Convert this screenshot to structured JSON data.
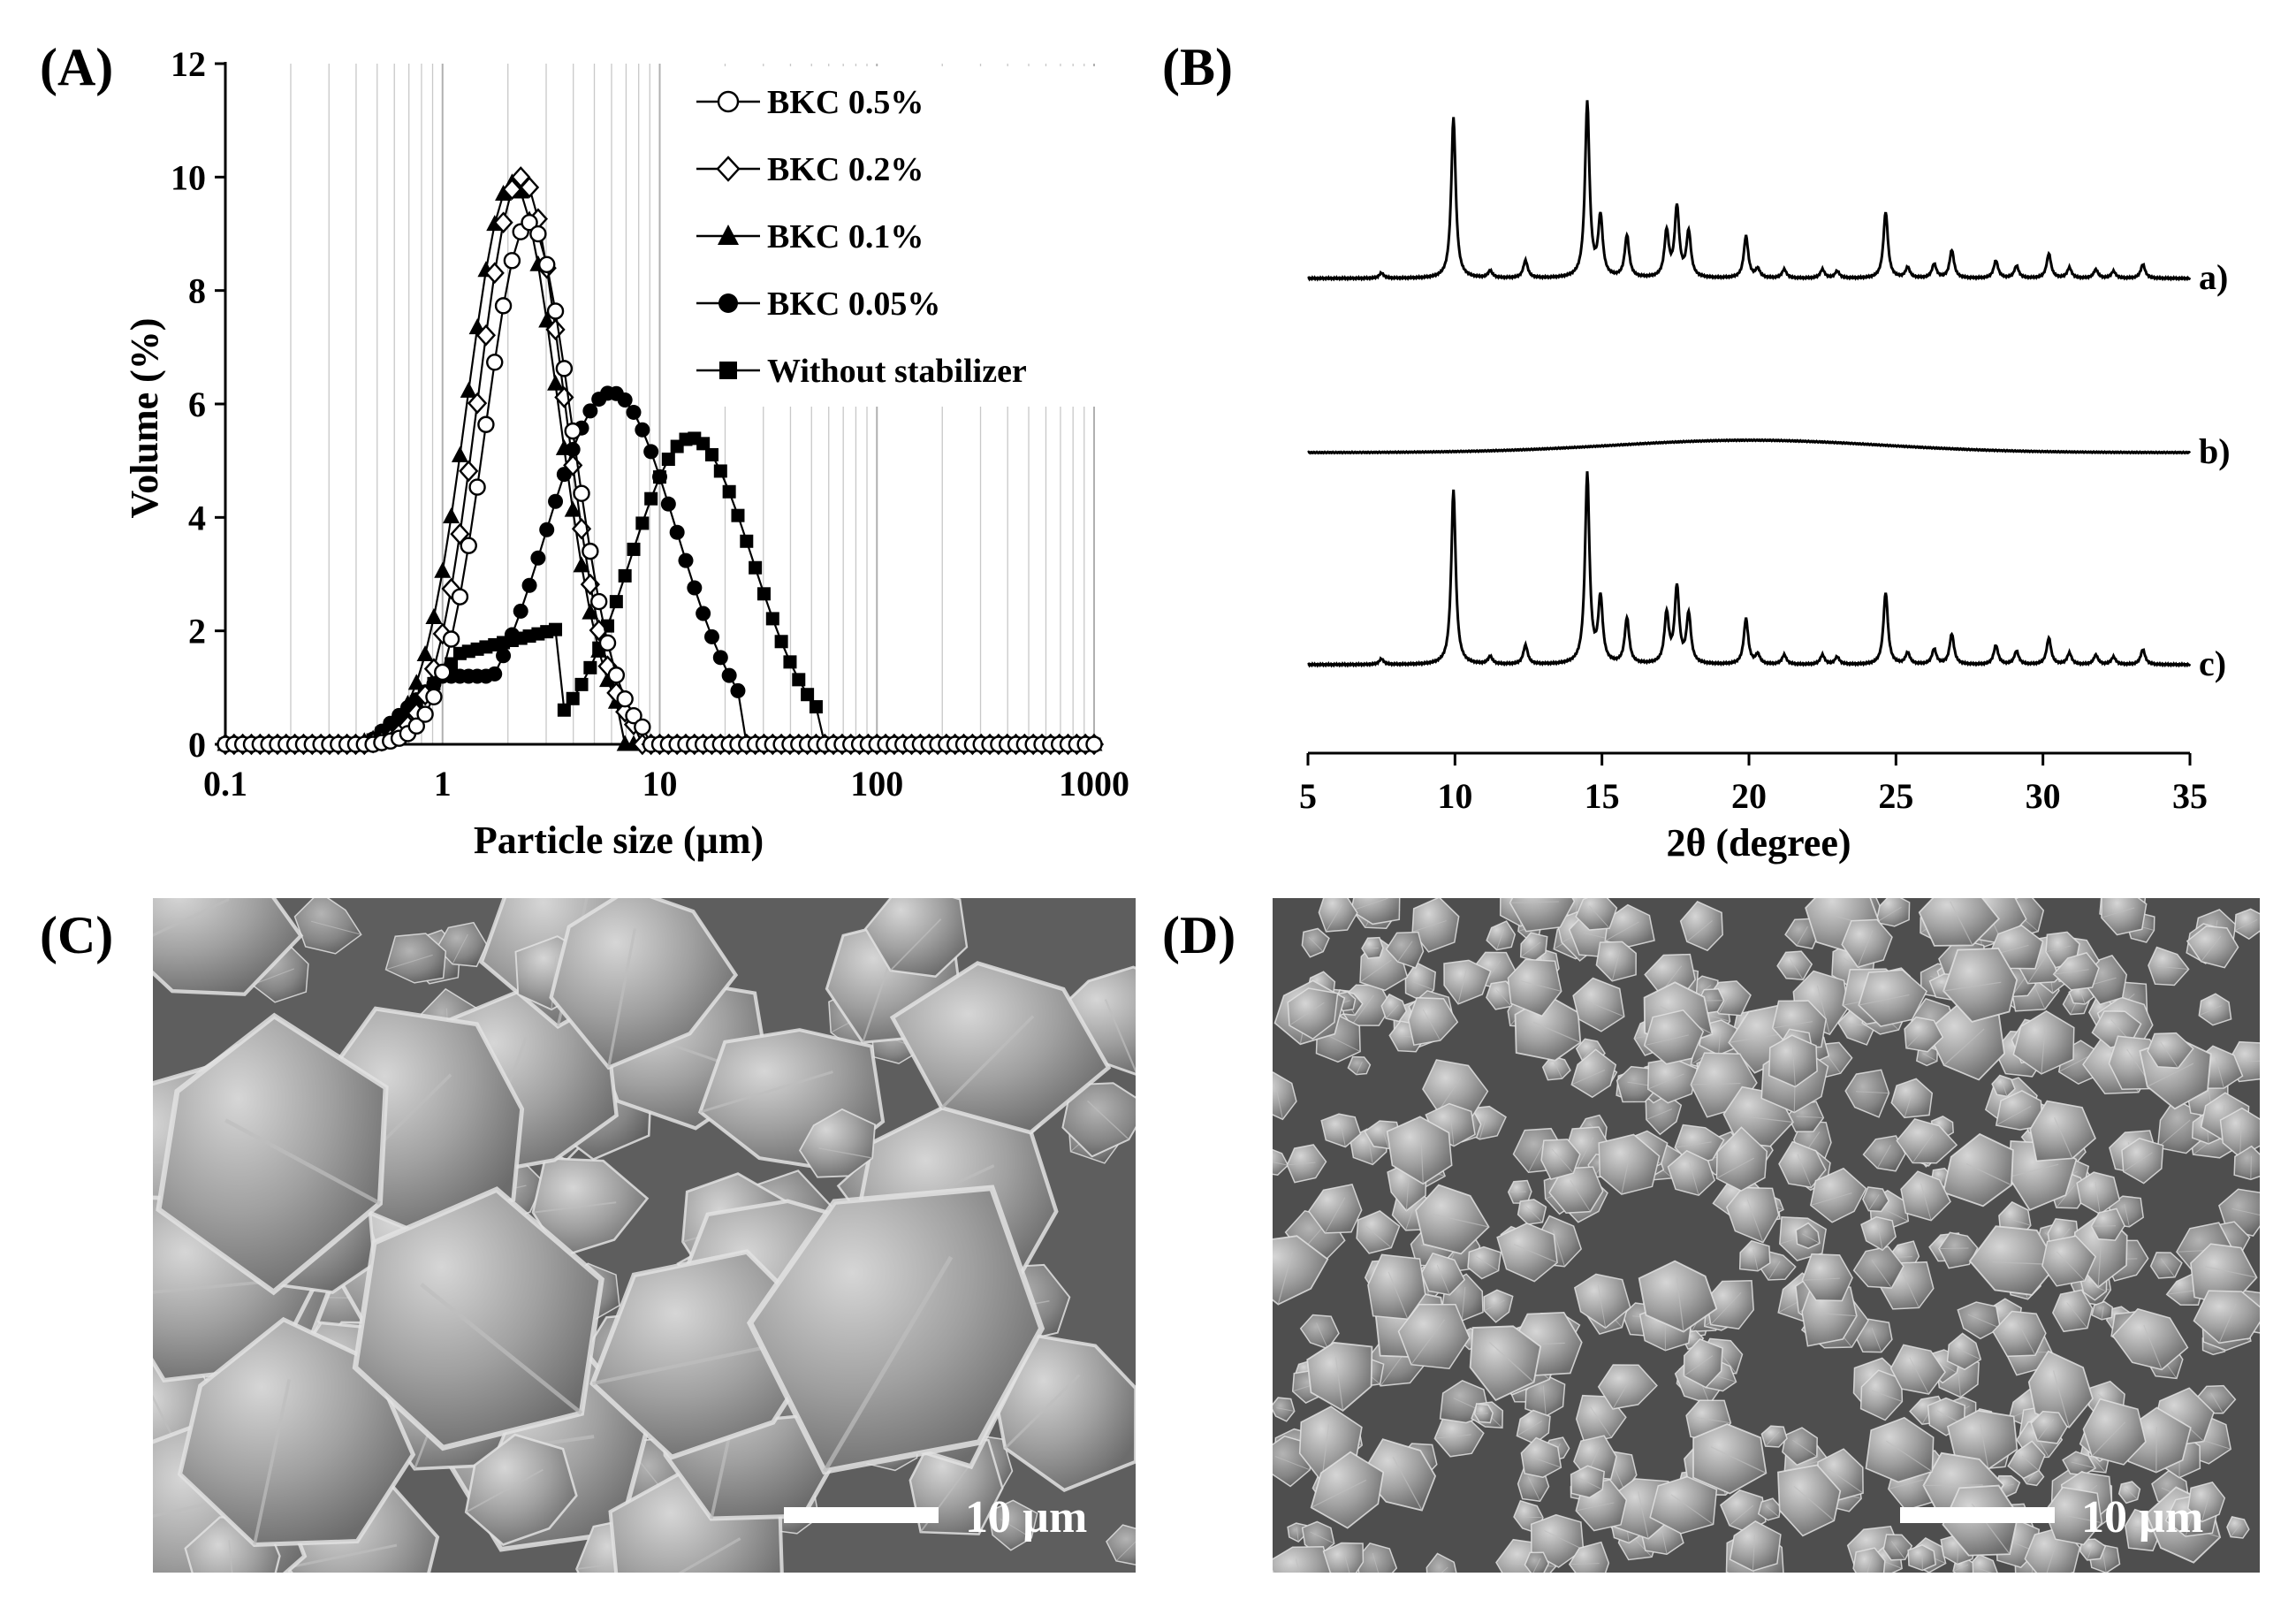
{
  "panels": {
    "A": "(A)",
    "B": "(B)",
    "C": "(C)",
    "D": "(D)"
  },
  "colors": {
    "ink": "#000000",
    "grid": "#c8c8c8",
    "sem_bg": "#6a6a6a"
  },
  "chart_data": [
    {
      "type": "line",
      "panel": "(A)",
      "title": "",
      "xlabel": "Particle size (µm)",
      "ylabel": "Volume (%)",
      "x_scale": "log",
      "xlim": [
        0.1,
        1000
      ],
      "ylim": [
        0,
        12
      ],
      "x_ticks": [
        0.1,
        1,
        10,
        100,
        1000
      ],
      "x_tick_labels": [
        "0.1",
        "1",
        "10",
        "100",
        "1000"
      ],
      "y_ticks": [
        0,
        2,
        4,
        6,
        8,
        10,
        12
      ],
      "grid": true,
      "legend": "top-right",
      "series": [
        {
          "name": "BKC 0.5%",
          "marker": "open-circle",
          "peak_x": 2.5,
          "peak_y": 9.2,
          "sigma": 0.2,
          "xmin": 0.5,
          "xmax": 8.5
        },
        {
          "name": "BKC 0.2%",
          "marker": "open-diamond",
          "peak_x": 2.3,
          "peak_y": 10.0,
          "sigma": 0.2,
          "xmin": 0.45,
          "xmax": 7.6
        },
        {
          "name": "BKC 0.1%",
          "marker": "filled-triangle",
          "peak_x": 2.1,
          "peak_y": 9.9,
          "sigma": 0.21,
          "xmin": 0.4,
          "xmax": 6.5
        },
        {
          "name": "BKC 0.05%",
          "marker": "filled-circle",
          "peak_x": 6.0,
          "peak_y": 6.2,
          "sigma": 0.3,
          "xmin": 0.45,
          "xmax": 25
        },
        {
          "name": "Without stabilizer",
          "marker": "filled-square",
          "peak_x": 14.0,
          "peak_y": 5.4,
          "sigma": 0.28,
          "xmin": 0.45,
          "xmax": 55
        }
      ]
    },
    {
      "type": "line",
      "panel": "(B)",
      "title": "",
      "xlabel": "2θ (degree)",
      "ylabel": "",
      "xlim": [
        5,
        35
      ],
      "x_ticks": [
        5,
        10,
        15,
        20,
        25,
        30,
        35
      ],
      "grid": false,
      "series": [
        {
          "name": "a)",
          "kind": "crystalline",
          "peaks": [
            [
              7.5,
              0.03
            ],
            [
              9.95,
              0.92
            ],
            [
              11.2,
              0.04
            ],
            [
              12.4,
              0.1
            ],
            [
              14.5,
              1.0
            ],
            [
              14.95,
              0.34
            ],
            [
              15.85,
              0.24
            ],
            [
              17.2,
              0.26
            ],
            [
              17.55,
              0.4
            ],
            [
              17.95,
              0.26
            ],
            [
              19.9,
              0.24
            ],
            [
              20.3,
              0.05
            ],
            [
              21.2,
              0.05
            ],
            [
              22.5,
              0.05
            ],
            [
              23.0,
              0.04
            ],
            [
              24.65,
              0.38
            ],
            [
              25.4,
              0.06
            ],
            [
              26.3,
              0.08
            ],
            [
              26.9,
              0.16
            ],
            [
              28.4,
              0.1
            ],
            [
              29.1,
              0.07
            ],
            [
              30.2,
              0.14
            ],
            [
              30.9,
              0.06
            ],
            [
              31.8,
              0.05
            ],
            [
              32.4,
              0.04
            ],
            [
              33.4,
              0.08
            ]
          ]
        },
        {
          "name": "b)",
          "kind": "amorphous",
          "hump_center": 20.0,
          "hump_height": 0.04
        },
        {
          "name": "c)",
          "kind": "crystalline",
          "peaks": [
            [
              7.5,
              0.03
            ],
            [
              9.95,
              0.92
            ],
            [
              11.2,
              0.04
            ],
            [
              12.4,
              0.1
            ],
            [
              14.5,
              1.0
            ],
            [
              14.95,
              0.34
            ],
            [
              15.85,
              0.24
            ],
            [
              17.2,
              0.26
            ],
            [
              17.55,
              0.4
            ],
            [
              17.95,
              0.26
            ],
            [
              19.9,
              0.24
            ],
            [
              20.3,
              0.05
            ],
            [
              21.2,
              0.05
            ],
            [
              22.5,
              0.05
            ],
            [
              23.0,
              0.04
            ],
            [
              24.65,
              0.38
            ],
            [
              25.4,
              0.06
            ],
            [
              26.3,
              0.08
            ],
            [
              26.9,
              0.16
            ],
            [
              28.4,
              0.1
            ],
            [
              29.1,
              0.07
            ],
            [
              30.2,
              0.14
            ],
            [
              30.9,
              0.06
            ],
            [
              31.8,
              0.05
            ],
            [
              32.4,
              0.04
            ],
            [
              33.4,
              0.08
            ]
          ]
        }
      ]
    }
  ],
  "sem": {
    "C": {
      "scale_label": "10 µm"
    },
    "D": {
      "scale_label": "10 µm"
    }
  }
}
